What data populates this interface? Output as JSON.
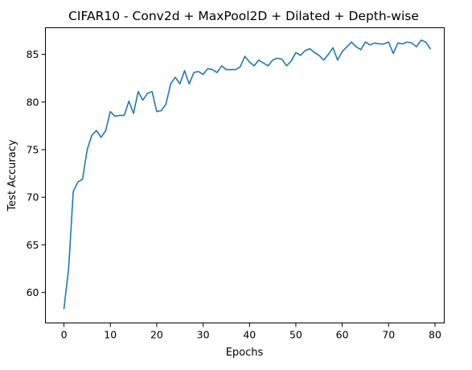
{
  "chart_data": {
    "type": "line",
    "title": "CIFAR10 - Conv2d + MaxPool2D + Dilated + Depth-wise",
    "xlabel": "Epochs",
    "ylabel": "Test Accuracy",
    "xlim": [
      -4,
      82
    ],
    "ylim": [
      56.8,
      87.8
    ],
    "xticks": [
      0,
      10,
      20,
      30,
      40,
      50,
      60,
      70,
      80
    ],
    "yticks": [
      60,
      65,
      70,
      75,
      80,
      85
    ],
    "grid": false,
    "legend": "none",
    "series": [
      {
        "color": "#1f77b4",
        "x": [
          0,
          1,
          2,
          3,
          4,
          5,
          6,
          7,
          8,
          9,
          10,
          11,
          12,
          13,
          14,
          15,
          16,
          17,
          18,
          19,
          20,
          21,
          22,
          23,
          24,
          25,
          26,
          27,
          28,
          29,
          30,
          31,
          32,
          33,
          34,
          35,
          36,
          37,
          38,
          39,
          40,
          41,
          42,
          43,
          44,
          45,
          46,
          47,
          48,
          49,
          50,
          51,
          52,
          53,
          54,
          55,
          56,
          57,
          58,
          59,
          60,
          61,
          62,
          63,
          64,
          65,
          66,
          67,
          68,
          69,
          70,
          71,
          72,
          73,
          74,
          75,
          76,
          77,
          78,
          79
        ],
        "y": [
          58.3,
          62.5,
          70.6,
          71.6,
          71.9,
          75.0,
          76.5,
          77.0,
          76.3,
          77.0,
          79.0,
          78.5,
          78.6,
          78.6,
          80.1,
          78.8,
          81.1,
          80.2,
          80.9,
          81.1,
          79.0,
          79.1,
          79.8,
          81.9,
          82.6,
          81.9,
          83.3,
          81.9,
          83.1,
          83.2,
          82.9,
          83.5,
          83.4,
          83.1,
          83.8,
          83.4,
          83.4,
          83.4,
          83.7,
          84.8,
          84.2,
          83.8,
          84.4,
          84.1,
          83.8,
          84.4,
          84.6,
          84.5,
          83.8,
          84.3,
          85.2,
          84.9,
          85.4,
          85.6,
          85.2,
          84.9,
          84.4,
          85.0,
          85.7,
          84.4,
          85.3,
          85.8,
          86.3,
          85.8,
          85.5,
          86.3,
          86.0,
          86.2,
          86.1,
          86.1,
          86.3,
          85.1,
          86.2,
          86.1,
          86.3,
          86.2,
          85.8,
          86.5,
          86.3,
          85.6
        ]
      }
    ]
  }
}
